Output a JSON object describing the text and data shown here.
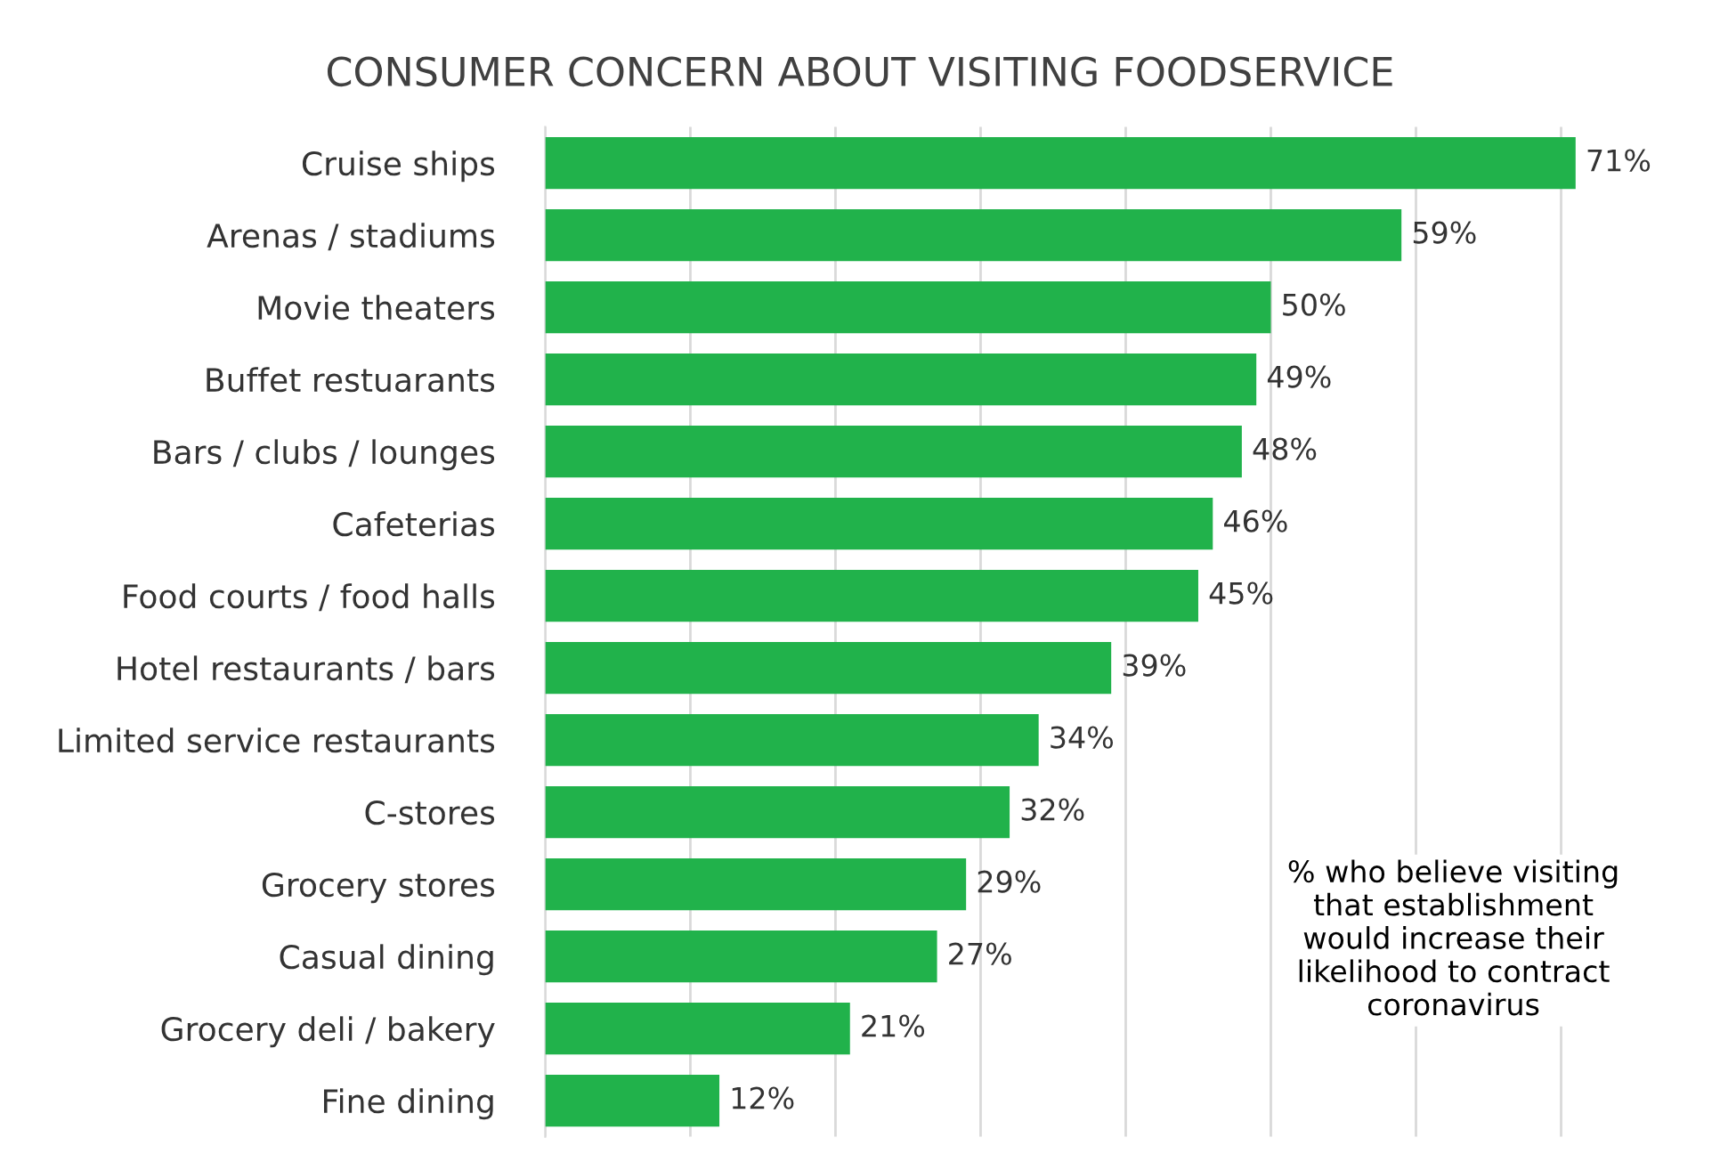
{
  "chart_data": {
    "type": "bar",
    "orientation": "horizontal",
    "title": "CONSUMER CONCERN ABOUT VISITING FOODSERVICE",
    "categories": [
      "Cruise ships",
      "Arenas / stadiums",
      "Movie theaters",
      "Buffet restuarants",
      "Bars / clubs / lounges",
      "Cafeterias",
      "Food courts / food halls",
      "Hotel restaurants / bars",
      "Limited service restaurants",
      "C-stores",
      "Grocery stores",
      "Casual dining",
      "Grocery deli / bakery",
      "Fine dining"
    ],
    "values": [
      71,
      59,
      50,
      49,
      48,
      46,
      45,
      39,
      34,
      32,
      29,
      27,
      21,
      12
    ],
    "value_labels": [
      "71%",
      "59%",
      "50%",
      "49%",
      "48%",
      "46%",
      "45%",
      "39%",
      "34%",
      "32%",
      "29%",
      "27%",
      "21%",
      "12%"
    ],
    "color": "#21b24b",
    "xticks": [
      {
        "value": 0,
        "label": null
      },
      {
        "value": 10,
        "label": null
      },
      {
        "value": 20,
        "label": null
      },
      {
        "value": 30,
        "label": null
      },
      {
        "value": 40,
        "label": null
      },
      {
        "value": 50,
        "label": null
      },
      {
        "value": 60,
        "label": null
      },
      {
        "value": 70,
        "label": null
      }
    ],
    "grid": "x",
    "tick_labels": "y",
    "annotations": [
      "% who believe visiting\nthat establishment\nwould increase their\nlikelihood to contract\ncoronavirus"
    ]
  }
}
